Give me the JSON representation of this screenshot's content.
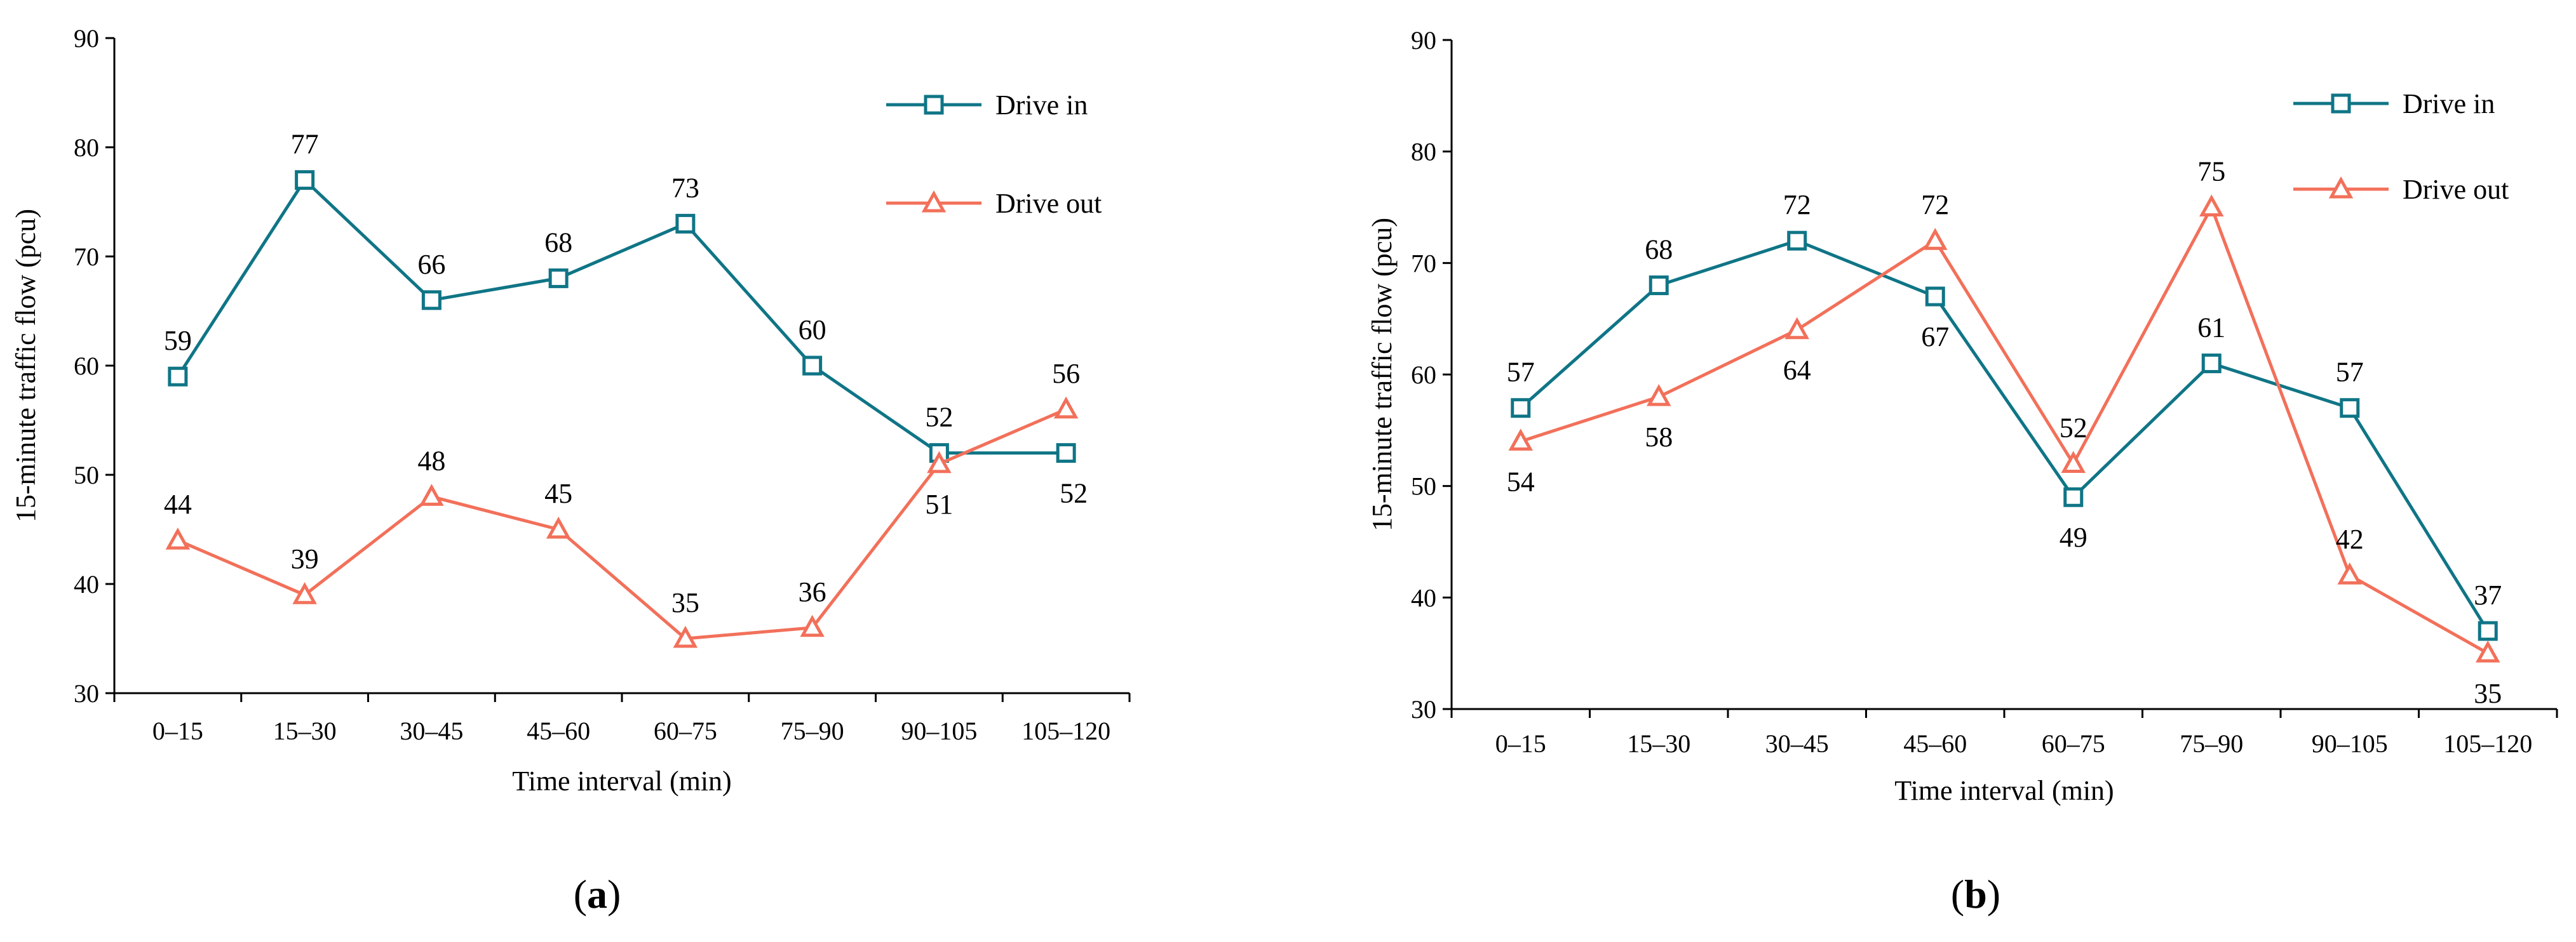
{
  "colors": {
    "drive_in": "#0f7586",
    "drive_out": "#f2705a",
    "axis": "#000000"
  },
  "chart_data": [
    {
      "type": "line",
      "panel": "a",
      "caption": {
        "open": "(",
        "letter": "a",
        "close": ")"
      },
      "categories": [
        "0–15",
        "15–30",
        "30–45",
        "45–60",
        "60–75",
        "75–90",
        "90–105",
        "105–120"
      ],
      "xlabel": "Time interval (min)",
      "ylabel": "15-minute traffic flow (pcu)",
      "ylim": [
        30,
        90
      ],
      "yticks": [
        30,
        40,
        50,
        60,
        70,
        80,
        90
      ],
      "legend_position": "top-right",
      "series": [
        {
          "name": "Drive in",
          "marker": "square",
          "values": [
            59,
            77,
            66,
            68,
            73,
            60,
            52,
            52
          ],
          "label_side": [
            "up",
            "up",
            "up",
            "up",
            "up",
            "up",
            "up",
            "down-right"
          ]
        },
        {
          "name": "Drive out",
          "marker": "triangle",
          "values": [
            44,
            39,
            48,
            45,
            35,
            36,
            51,
            56
          ],
          "label_side": [
            "up",
            "up",
            "up",
            "up",
            "up",
            "up",
            "down",
            "up"
          ]
        }
      ]
    },
    {
      "type": "line",
      "panel": "b",
      "caption": {
        "open": "(",
        "letter": "b",
        "close": ")"
      },
      "categories": [
        "0–15",
        "15–30",
        "30–45",
        "45–60",
        "60–75",
        "75–90",
        "90–105",
        "105–120"
      ],
      "xlabel": "Time interval (min)",
      "ylabel": "15-minute traffic flow (pcu)",
      "ylim": [
        30,
        90
      ],
      "yticks": [
        30,
        40,
        50,
        60,
        70,
        80,
        90
      ],
      "legend_position": "top-right",
      "series": [
        {
          "name": "Drive in",
          "marker": "square",
          "values": [
            57,
            68,
            72,
            67,
            49,
            61,
            57,
            37
          ],
          "label_side": [
            "up",
            "up",
            "up",
            "down",
            "down",
            "up",
            "up",
            "up"
          ]
        },
        {
          "name": "Drive out",
          "marker": "triangle",
          "values": [
            54,
            58,
            64,
            72,
            52,
            75,
            42,
            35
          ],
          "label_side": [
            "down",
            "down",
            "down",
            "up",
            "up",
            "up",
            "up",
            "down"
          ]
        }
      ]
    }
  ]
}
